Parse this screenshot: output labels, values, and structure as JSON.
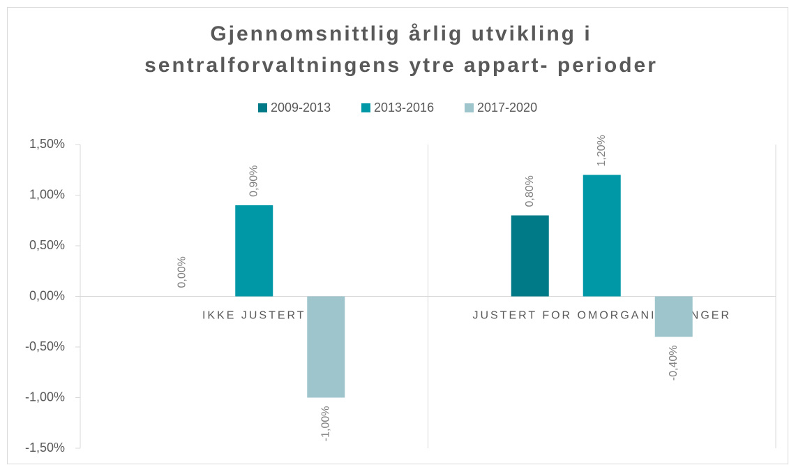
{
  "chart_data": {
    "type": "bar",
    "title": [
      "Gjennomsnittlig årlig utvikling i",
      "sentralforvaltningens ytre appart- perioder"
    ],
    "categories": [
      "IKKE JUSTERT",
      "JUSTERT FOR OMORGANISERINGER"
    ],
    "series": [
      {
        "name": "2009-2013",
        "color": "#007a87",
        "values": [
          0,
          0.8
        ],
        "value_labels": [
          "0,00%",
          "0,80%"
        ]
      },
      {
        "name": "2013-2016",
        "color": "#0097a7",
        "values": [
          0.9,
          1.2
        ],
        "value_labels": [
          "0,90%",
          "1,20%"
        ]
      },
      {
        "name": "2017-2020",
        "color": "#9fc5cc",
        "values": [
          -1.0,
          -0.4
        ],
        "value_labels": [
          "-1,00%",
          "-0,40%"
        ]
      }
    ],
    "ylim": [
      -1.5,
      1.5
    ],
    "yticks": [
      {
        "value": -1.5,
        "label": "-1,50%"
      },
      {
        "value": -1.0,
        "label": "-1,00%"
      },
      {
        "value": -0.5,
        "label": "-0,50%"
      },
      {
        "value": 0,
        "label": "0,00%"
      },
      {
        "value": 0.5,
        "label": "0,50%"
      },
      {
        "value": 1.0,
        "label": "1,00%"
      },
      {
        "value": 1.5,
        "label": "1,50%"
      }
    ],
    "legend": "top"
  }
}
